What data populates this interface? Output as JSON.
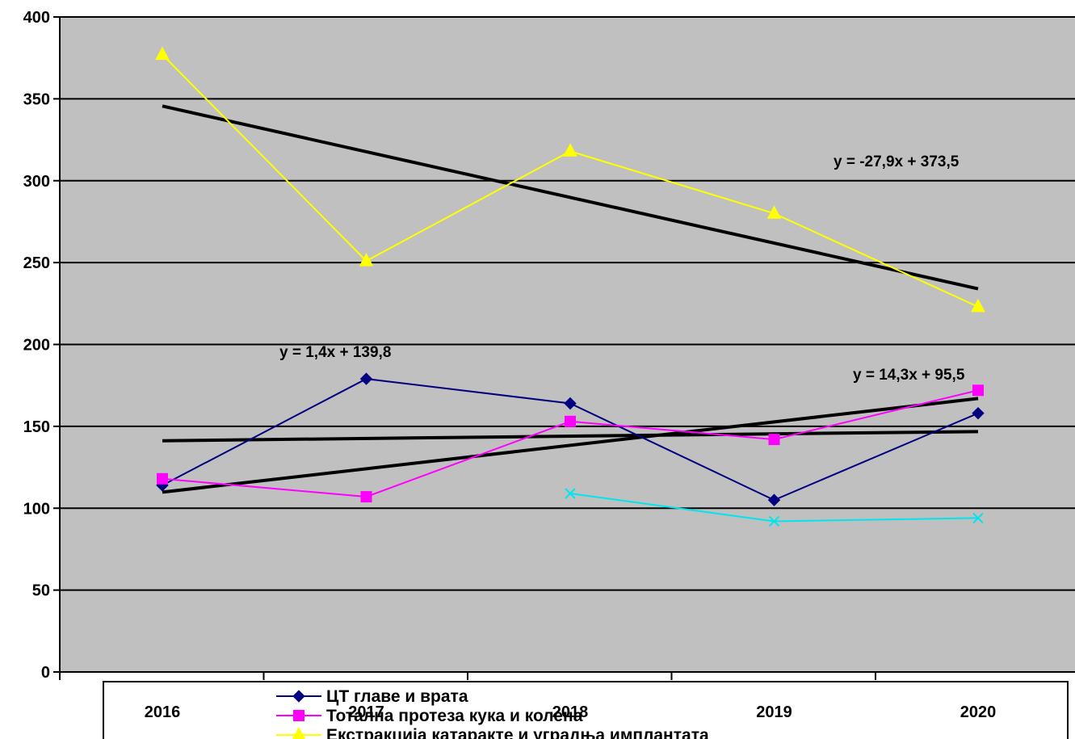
{
  "chart_data": {
    "type": "line",
    "categories": [
      "2016",
      "2017",
      "2018",
      "2019",
      "2020"
    ],
    "ylim": [
      0,
      400
    ],
    "yticks": [
      0,
      50,
      100,
      150,
      200,
      250,
      300,
      350,
      400
    ],
    "grid": true,
    "legend_position": "bottom",
    "colors": {
      "plot_background": "#c0c0c0",
      "trendline": "#000000"
    },
    "series": [
      {
        "name": "ЦТ главе и врата",
        "color": "#000080",
        "marker": "diamond",
        "values": [
          114,
          179,
          164,
          105,
          158
        ]
      },
      {
        "name": "Тотална протеза кука и колена",
        "color": "#ff00ff",
        "marker": "square",
        "values": [
          118,
          107,
          153,
          142,
          172
        ]
      },
      {
        "name": "Екстракција катаракте и уградња имплантата",
        "color": "#ffff00",
        "marker": "triangle",
        "values": [
          377,
          251,
          318,
          280,
          223
        ]
      },
      {
        "name": "",
        "color": "#00e5ee",
        "marker": "x",
        "values": [
          null,
          null,
          109,
          92,
          94
        ]
      }
    ],
    "trendlines": [
      {
        "equation": "y = -27,9x + 373,5",
        "slope": -27.9,
        "intercept": 373.5
      },
      {
        "equation": "y = 1,4x + 139,8",
        "slope": 1.4,
        "intercept": 139.8
      },
      {
        "equation": "y = 14,3x + 95,5",
        "slope": 14.3,
        "intercept": 95.5
      }
    ]
  }
}
